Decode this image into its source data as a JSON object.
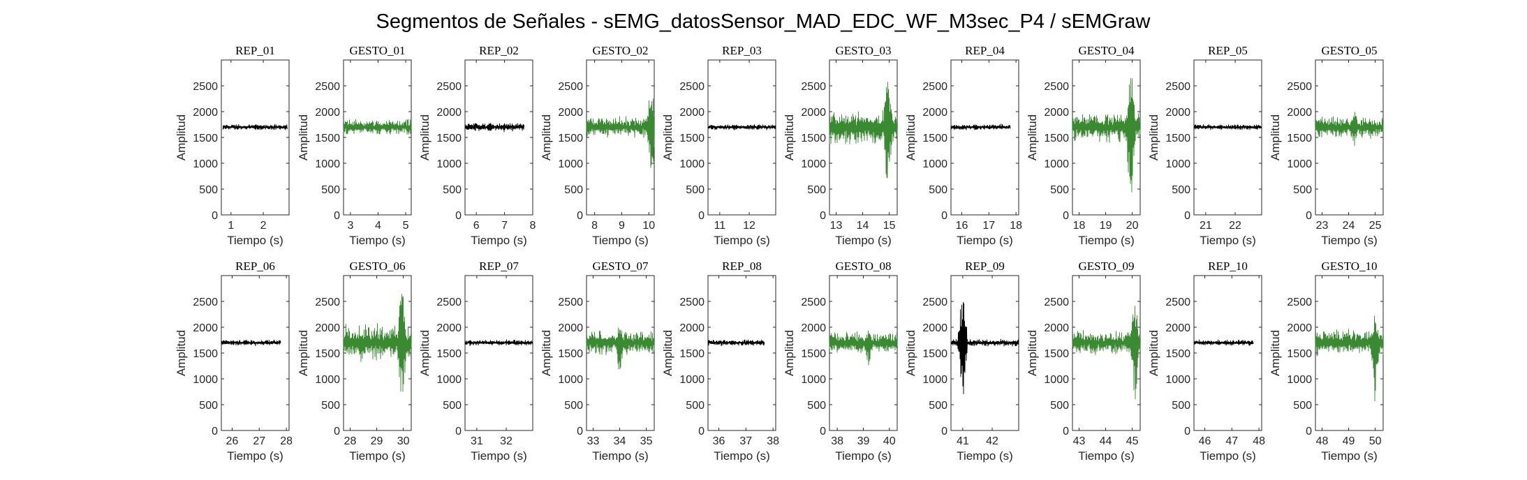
{
  "figure_title": "Segmentos de Señales - sEMG_datosSensor_MAD_EDC_WF_M3sec_P4 / sEMGraw",
  "colors": {
    "rep": "#000000",
    "gesto": "#3a8a32",
    "axis": "#262626"
  },
  "chart_data": [
    {
      "type": "line",
      "title": "REP_01",
      "xlabel": "Tiempo (s)",
      "ylabel": "Amplitud",
      "xlim": [
        0.7,
        2.8
      ],
      "xticks": [
        1,
        2
      ],
      "ylim": [
        0,
        3000
      ],
      "yticks": [
        0,
        500,
        1000,
        1500,
        2000,
        2500
      ],
      "series": [
        {
          "x_start": 0.75,
          "x_end": 2.75,
          "baseline": 1700,
          "noise": 45,
          "burst_peak": 1760,
          "burst_low": 1640,
          "burst_x": 2.7,
          "color_key": "rep"
        }
      ]
    },
    {
      "type": "line",
      "title": "GESTO_01",
      "xlabel": "Tiempo (s)",
      "ylabel": "Amplitud",
      "xlim": [
        2.75,
        5.2
      ],
      "xticks": [
        3,
        4,
        5
      ],
      "ylim": [
        0,
        3000
      ],
      "yticks": [
        0,
        500,
        1000,
        1500,
        2000,
        2500
      ],
      "series": [
        {
          "x_start": 2.75,
          "x_end": 5.2,
          "baseline": 1700,
          "noise": 120,
          "burst_peak": 1850,
          "burst_low": 1520,
          "burst_x": 4.0,
          "color_key": "gesto"
        }
      ]
    },
    {
      "type": "line",
      "title": "REP_02",
      "xlabel": "Tiempo (s)",
      "ylabel": "Amplitud",
      "xlim": [
        5.6,
        8.0
      ],
      "xticks": [
        6,
        7,
        8
      ],
      "ylim": [
        0,
        3000
      ],
      "yticks": [
        0,
        500,
        1000,
        1500,
        2000,
        2500
      ],
      "series": [
        {
          "x_start": 5.6,
          "x_end": 7.7,
          "baseline": 1700,
          "noise": 70,
          "burst_peak": 1790,
          "burst_low": 1600,
          "burst_x": 6.5,
          "color_key": "rep"
        }
      ]
    },
    {
      "type": "line",
      "title": "GESTO_02",
      "xlabel": "Tiempo (s)",
      "ylabel": "Amplitud",
      "xlim": [
        7.7,
        10.2
      ],
      "xticks": [
        8,
        9,
        10
      ],
      "ylim": [
        0,
        3000
      ],
      "yticks": [
        0,
        500,
        1000,
        1500,
        2000,
        2500
      ],
      "series": [
        {
          "x_start": 7.7,
          "x_end": 10.2,
          "baseline": 1700,
          "noise": 160,
          "burst_peak": 2630,
          "burst_low": 680,
          "burst_x": 10.1,
          "color_key": "gesto"
        }
      ]
    },
    {
      "type": "line",
      "title": "REP_03",
      "xlabel": "Tiempo (s)",
      "ylabel": "Amplitud",
      "xlim": [
        10.6,
        12.9
      ],
      "xticks": [
        11,
        12
      ],
      "ylim": [
        0,
        3000
      ],
      "yticks": [
        0,
        500,
        1000,
        1500,
        2000,
        2500
      ],
      "series": [
        {
          "x_start": 10.6,
          "x_end": 12.9,
          "baseline": 1700,
          "noise": 45,
          "burst_peak": 1760,
          "burst_low": 1640,
          "burst_x": 11.5,
          "color_key": "rep"
        }
      ]
    },
    {
      "type": "line",
      "title": "GESTO_03",
      "xlabel": "Tiempo (s)",
      "ylabel": "Amplitud",
      "xlim": [
        12.75,
        15.3
      ],
      "xticks": [
        13,
        14,
        15
      ],
      "ylim": [
        0,
        3000
      ],
      "yticks": [
        0,
        500,
        1000,
        1500,
        2000,
        2500
      ],
      "series": [
        {
          "x_start": 12.75,
          "x_end": 15.3,
          "baseline": 1700,
          "noise": 260,
          "burst_peak": 2850,
          "burst_low": 480,
          "burst_x": 14.95,
          "color_key": "gesto"
        }
      ]
    },
    {
      "type": "line",
      "title": "REP_04",
      "xlabel": "Tiempo (s)",
      "ylabel": "Amplitud",
      "xlim": [
        15.6,
        18.1
      ],
      "xticks": [
        16,
        17,
        18
      ],
      "ylim": [
        0,
        3000
      ],
      "yticks": [
        0,
        500,
        1000,
        1500,
        2000,
        2500
      ],
      "series": [
        {
          "x_start": 15.6,
          "x_end": 17.8,
          "baseline": 1700,
          "noise": 45,
          "burst_peak": 1760,
          "burst_low": 1640,
          "burst_x": 16.5,
          "color_key": "rep"
        }
      ]
    },
    {
      "type": "line",
      "title": "GESTO_04",
      "xlabel": "Tiempo (s)",
      "ylabel": "Amplitud",
      "xlim": [
        17.75,
        20.3
      ],
      "xticks": [
        18,
        19,
        20
      ],
      "ylim": [
        0,
        3000
      ],
      "yticks": [
        0,
        500,
        1000,
        1500,
        2000,
        2500
      ],
      "series": [
        {
          "x_start": 17.75,
          "x_end": 20.3,
          "baseline": 1700,
          "noise": 230,
          "burst_peak": 2900,
          "burst_low": 50,
          "burst_x": 19.95,
          "color_key": "gesto"
        }
      ]
    },
    {
      "type": "line",
      "title": "REP_05",
      "xlabel": "Tiempo (s)",
      "ylabel": "Amplitud",
      "xlim": [
        20.6,
        22.9
      ],
      "xticks": [
        21,
        22
      ],
      "ylim": [
        0,
        3000
      ],
      "yticks": [
        0,
        500,
        1000,
        1500,
        2000,
        2500
      ],
      "series": [
        {
          "x_start": 20.6,
          "x_end": 22.9,
          "baseline": 1700,
          "noise": 45,
          "burst_peak": 1760,
          "burst_low": 1640,
          "burst_x": 21.5,
          "color_key": "rep"
        }
      ]
    },
    {
      "type": "line",
      "title": "GESTO_05",
      "xlabel": "Tiempo (s)",
      "ylabel": "Amplitud",
      "xlim": [
        22.75,
        25.3
      ],
      "xticks": [
        23,
        24,
        25
      ],
      "ylim": [
        0,
        3000
      ],
      "yticks": [
        0,
        500,
        1000,
        1500,
        2000,
        2500
      ],
      "series": [
        {
          "x_start": 22.75,
          "x_end": 25.3,
          "baseline": 1700,
          "noise": 170,
          "burst_peak": 2080,
          "burst_low": 1300,
          "burst_x": 24.2,
          "color_key": "gesto"
        }
      ]
    },
    {
      "type": "line",
      "title": "REP_06",
      "xlabel": "Tiempo (s)",
      "ylabel": "Amplitud",
      "xlim": [
        25.6,
        28.1
      ],
      "xticks": [
        26,
        27,
        28
      ],
      "ylim": [
        0,
        3000
      ],
      "yticks": [
        0,
        500,
        1000,
        1500,
        2000,
        2500
      ],
      "series": [
        {
          "x_start": 25.6,
          "x_end": 27.8,
          "baseline": 1700,
          "noise": 45,
          "burst_peak": 1760,
          "burst_low": 1640,
          "burst_x": 26.5,
          "color_key": "rep"
        }
      ]
    },
    {
      "type": "line",
      "title": "GESTO_06",
      "xlabel": "Tiempo (s)",
      "ylabel": "Amplitud",
      "xlim": [
        27.75,
        30.3
      ],
      "xticks": [
        28,
        29,
        30
      ],
      "ylim": [
        0,
        3000
      ],
      "yticks": [
        0,
        500,
        1000,
        1500,
        2000,
        2500
      ],
      "series": [
        {
          "x_start": 27.75,
          "x_end": 30.3,
          "baseline": 1700,
          "noise": 280,
          "burst_peak": 2820,
          "burst_low": 380,
          "burst_x": 29.95,
          "color_key": "gesto"
        }
      ]
    },
    {
      "type": "line",
      "title": "REP_07",
      "xlabel": "Tiempo (s)",
      "ylabel": "Amplitud",
      "xlim": [
        30.6,
        32.9
      ],
      "xticks": [
        31,
        32
      ],
      "ylim": [
        0,
        3000
      ],
      "yticks": [
        0,
        500,
        1000,
        1500,
        2000,
        2500
      ],
      "series": [
        {
          "x_start": 30.6,
          "x_end": 32.9,
          "baseline": 1700,
          "noise": 45,
          "burst_peak": 1760,
          "burst_low": 1640,
          "burst_x": 31.5,
          "color_key": "rep"
        }
      ]
    },
    {
      "type": "line",
      "title": "GESTO_07",
      "xlabel": "Tiempo (s)",
      "ylabel": "Amplitud",
      "xlim": [
        32.75,
        35.3
      ],
      "xticks": [
        33,
        34,
        35
      ],
      "ylim": [
        0,
        3000
      ],
      "yticks": [
        0,
        500,
        1000,
        1500,
        2000,
        2500
      ],
      "series": [
        {
          "x_start": 32.75,
          "x_end": 35.3,
          "baseline": 1700,
          "noise": 190,
          "burst_peak": 2050,
          "burst_low": 1120,
          "burst_x": 34.0,
          "color_key": "gesto"
        }
      ]
    },
    {
      "type": "line",
      "title": "REP_08",
      "xlabel": "Tiempo (s)",
      "ylabel": "Amplitud",
      "xlim": [
        35.6,
        38.1
      ],
      "xticks": [
        36,
        37,
        38
      ],
      "ylim": [
        0,
        3000
      ],
      "yticks": [
        0,
        500,
        1000,
        1500,
        2000,
        2500
      ],
      "series": [
        {
          "x_start": 35.6,
          "x_end": 37.7,
          "baseline": 1700,
          "noise": 50,
          "burst_peak": 1770,
          "burst_low": 1630,
          "burst_x": 36.5,
          "color_key": "rep"
        }
      ]
    },
    {
      "type": "line",
      "title": "GESTO_08",
      "xlabel": "Tiempo (s)",
      "ylabel": "Amplitud",
      "xlim": [
        37.7,
        40.3
      ],
      "xticks": [
        38,
        39,
        40
      ],
      "ylim": [
        0,
        3000
      ],
      "yticks": [
        0,
        500,
        1000,
        1500,
        2000,
        2500
      ],
      "series": [
        {
          "x_start": 37.7,
          "x_end": 40.3,
          "baseline": 1700,
          "noise": 170,
          "burst_peak": 1950,
          "burst_low": 1250,
          "burst_x": 39.2,
          "color_key": "gesto"
        }
      ]
    },
    {
      "type": "line",
      "title": "REP_09",
      "xlabel": "Tiempo (s)",
      "ylabel": "Amplitud",
      "xlim": [
        40.6,
        42.9
      ],
      "xticks": [
        41,
        42
      ],
      "ylim": [
        0,
        3000
      ],
      "yticks": [
        0,
        500,
        1000,
        1500,
        2000,
        2500
      ],
      "series": [
        {
          "x_start": 40.6,
          "x_end": 42.9,
          "baseline": 1700,
          "noise": 55,
          "burst_peak": 2800,
          "burst_low": 650,
          "burst_x": 41.0,
          "color_key": "rep"
        }
      ]
    },
    {
      "type": "line",
      "title": "GESTO_09",
      "xlabel": "Tiempo (s)",
      "ylabel": "Amplitud",
      "xlim": [
        42.75,
        45.3
      ],
      "xticks": [
        43,
        44,
        45
      ],
      "ylim": [
        0,
        3000
      ],
      "yticks": [
        0,
        500,
        1000,
        1500,
        2000,
        2500
      ],
      "series": [
        {
          "x_start": 42.75,
          "x_end": 45.3,
          "baseline": 1700,
          "noise": 180,
          "burst_peak": 2490,
          "burst_low": 500,
          "burst_x": 45.1,
          "color_key": "gesto"
        }
      ]
    },
    {
      "type": "line",
      "title": "REP_10",
      "xlabel": "Tiempo (s)",
      "ylabel": "Amplitud",
      "xlim": [
        45.6,
        48.1
      ],
      "xticks": [
        46,
        47,
        48
      ],
      "ylim": [
        0,
        3000
      ],
      "yticks": [
        0,
        500,
        1000,
        1500,
        2000,
        2500
      ],
      "series": [
        {
          "x_start": 45.6,
          "x_end": 47.8,
          "baseline": 1700,
          "noise": 45,
          "burst_peak": 1760,
          "burst_low": 1640,
          "burst_x": 46.5,
          "color_key": "rep"
        }
      ]
    },
    {
      "type": "line",
      "title": "GESTO_10",
      "xlabel": "Tiempo (s)",
      "ylabel": "Amplitud",
      "xlim": [
        47.75,
        50.3
      ],
      "xticks": [
        48,
        49,
        50
      ],
      "ylim": [
        0,
        3000
      ],
      "yticks": [
        0,
        500,
        1000,
        1500,
        2000,
        2500
      ],
      "series": [
        {
          "x_start": 47.75,
          "x_end": 50.3,
          "baseline": 1700,
          "noise": 220,
          "burst_peak": 2320,
          "burst_low": 420,
          "burst_x": 50.0,
          "color_key": "gesto"
        }
      ]
    }
  ]
}
